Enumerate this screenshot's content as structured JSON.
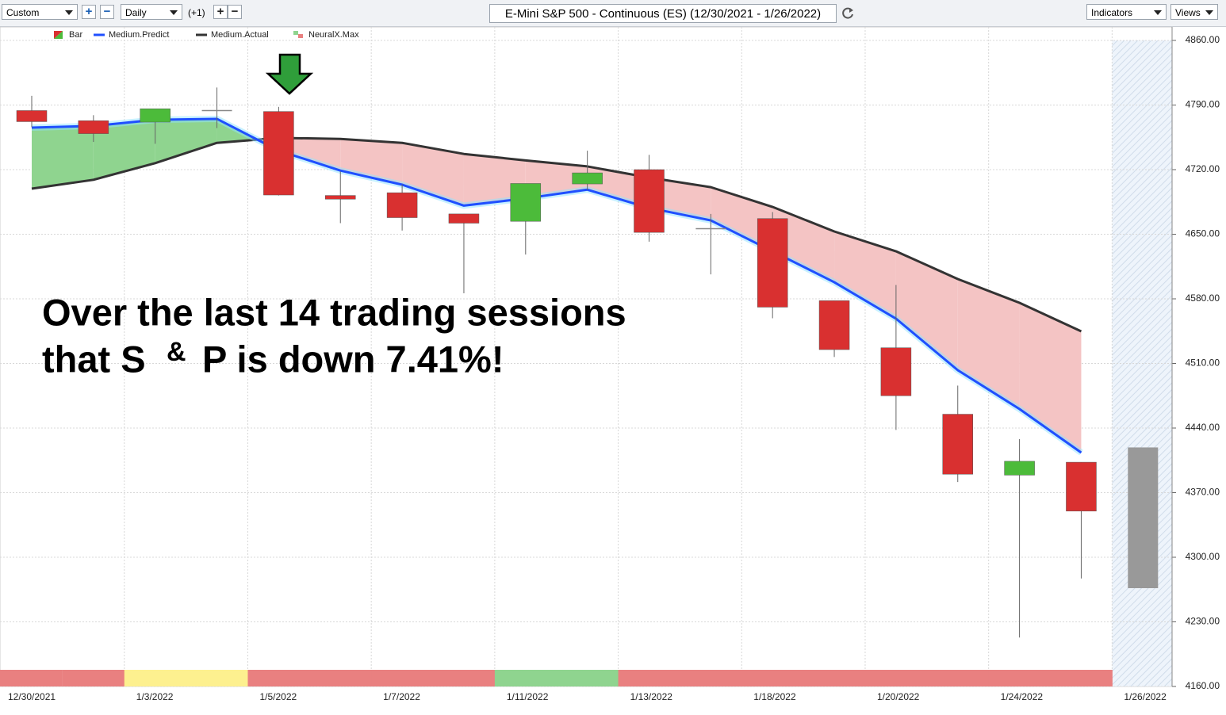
{
  "toolbar": {
    "layout": "Custom",
    "interval": "Daily",
    "offset": "(+1)",
    "title": "E-Mini S&P 500 - Continuous (ES) (12/30/2021 - 1/26/2022)",
    "indicators": "Indicators",
    "views": "Views"
  },
  "chart_data": {
    "type": "candlestick",
    "categories": [
      "12/30/2021",
      null,
      "1/3/2022",
      null,
      "1/5/2022",
      null,
      "1/7/2022",
      null,
      "1/11/2022",
      null,
      "1/13/2022",
      null,
      "1/18/2022",
      null,
      "1/20/2022",
      null,
      "1/24/2022",
      null,
      "1/26/2022"
    ],
    "series": [
      {
        "name": "Bar",
        "up_color": "#4cbb3a",
        "down_color": "#d93030",
        "flat_color": "#888888",
        "open": [
          4784,
          4773,
          4771.5,
          4784,
          4783,
          4692,
          4695,
          4672,
          4664,
          4704.5,
          4720,
          4656,
          4667,
          4578,
          4527,
          4455,
          4389,
          4403,
          null
        ],
        "high": [
          4800,
          4779,
          4786,
          4809,
          4788,
          4718,
          4704,
          4672,
          4705,
          4740.5,
          4736,
          4672,
          4674,
          4578,
          4595,
          4486,
          4428,
          4403,
          null
        ],
        "low": [
          4766,
          4750,
          4748,
          4765,
          4692,
          4662,
          4654,
          4586,
          4628,
          4698,
          4642,
          4606.5,
          4559,
          4517,
          4438,
          4381.5,
          4213,
          4277,
          null
        ],
        "close": [
          4772,
          4759,
          4786,
          4784,
          4692.5,
          4688,
          4668,
          4662,
          4705,
          4716.5,
          4652,
          4656,
          4571,
          4525,
          4475,
          4390,
          4404,
          4350,
          null
        ]
      },
      {
        "name": "Medium.Predict",
        "color": "#1f4fff",
        "values": [
          4765.5,
          4767.3,
          4774,
          4775,
          4740.6,
          4719,
          4703.7,
          4681,
          4688.8,
          4698.3,
          4678.5,
          4665,
          4631.5,
          4598,
          4558.5,
          4502.7,
          4460.6,
          4413.4,
          null
        ]
      },
      {
        "name": "Medium.Actual",
        "color": "#333333",
        "values": [
          4699.4,
          4709,
          4727,
          4749,
          4754.4,
          4753.3,
          4749,
          4737,
          4730,
          4723.5,
          4711.4,
          4701,
          4679.6,
          4653,
          4631.5,
          4601.5,
          4575.7,
          4544.8,
          null
        ]
      },
      {
        "name": "NeuralX.Max",
        "colors": [
          "#e98080",
          "#e98080",
          "#fdf08f",
          "#fdf08f",
          "#e98080",
          "#e98080",
          "#e98080",
          "#e98080",
          "#8fd48f",
          "#8fd48f",
          "#e98080",
          "#e98080",
          "#e98080",
          "#e98080",
          "#e98080",
          "#e98080",
          "#e98080",
          "#e98080",
          null
        ]
      }
    ],
    "forecast": {
      "low": 4266.5,
      "high": 4419,
      "color": "#999999"
    },
    "fill_above_color": "#8fd48f",
    "fill_below_color": "#f4c4c4",
    "ylim": [
      4160,
      4860
    ],
    "yticks": [
      {
        "value": 4160,
        "label": "4160.00"
      },
      {
        "value": 4230,
        "label": "4230.00"
      },
      {
        "value": 4300,
        "label": "4300.00"
      },
      {
        "value": 4370,
        "label": "4370.00"
      },
      {
        "value": 4440,
        "label": "4440.00"
      },
      {
        "value": 4510,
        "label": "4510.00"
      },
      {
        "value": 4580,
        "label": "4580.00"
      },
      {
        "value": 4650,
        "label": "4650.00"
      },
      {
        "value": 4720,
        "label": "4720.00"
      },
      {
        "value": 4790,
        "label": "4790.00"
      },
      {
        "value": 4860,
        "label": "4860.00"
      }
    ],
    "grid": true,
    "annotation": {
      "line1": "Over the last 14 trading sessions",
      "line2": [
        "that S",
        "&",
        "P is down 7.41%!"
      ]
    }
  }
}
